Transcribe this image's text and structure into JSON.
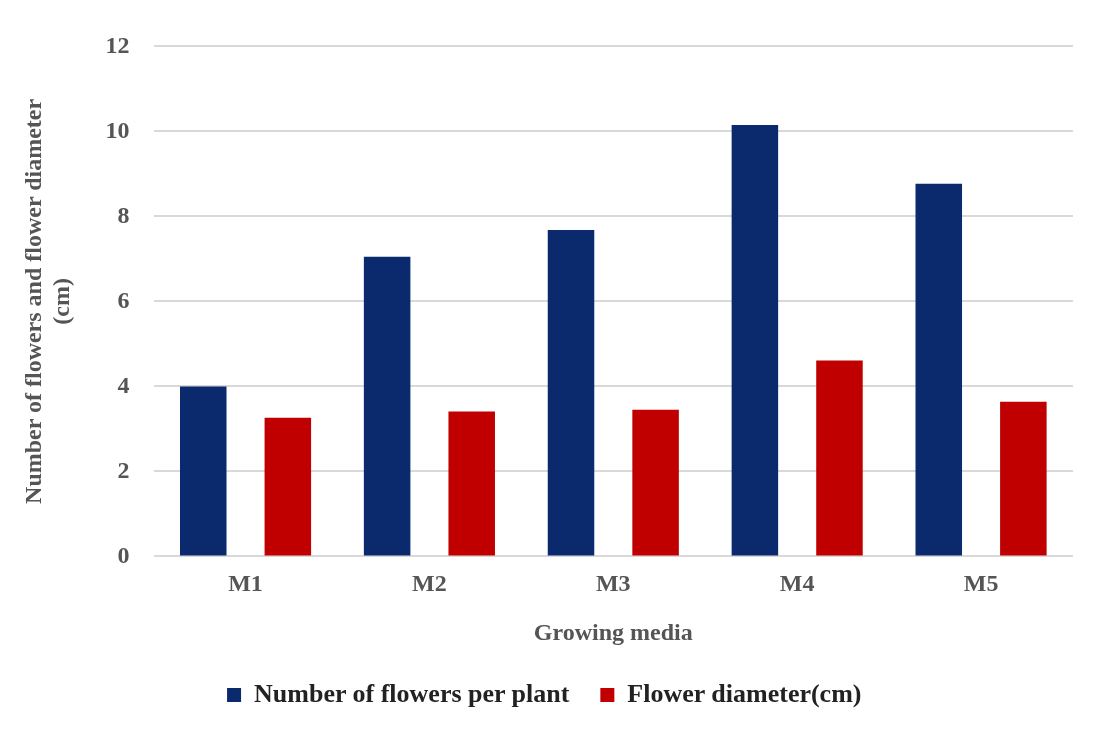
{
  "chart_data": {
    "type": "bar",
    "xlabel": "Growing media",
    "ylabel": "Number of flowers and flower diameter (cm)",
    "categories": [
      "M1",
      "M2",
      "M3",
      "M4",
      "M5"
    ],
    "series": [
      {
        "name": "Number of flowers per plant",
        "color": "#0b2a6e",
        "values": [
          4.0,
          7.05,
          7.68,
          10.15,
          8.77
        ]
      },
      {
        "name": "Flower diameter(cm)",
        "color": "#c00000",
        "values": [
          3.26,
          3.41,
          3.45,
          4.61,
          3.64
        ]
      }
    ],
    "ylim": [
      0,
      12
    ],
    "yticks": [
      0,
      2,
      4,
      6,
      8,
      10,
      12
    ],
    "grid": "y",
    "legend": "bottom"
  }
}
